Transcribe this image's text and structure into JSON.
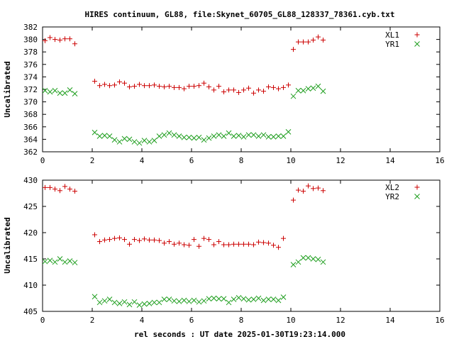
{
  "title": "HIRES continuum, GL88, file:Skynet_60705_GL88_128337_78361.cyb.txt",
  "xlabel": "rel seconds : UT date 2025-01-30T19:23:14.000",
  "colors": {
    "red": "#cc0000",
    "green": "#1a9c1a",
    "axis": "#000000"
  },
  "chart_data": [
    {
      "type": "scatter",
      "ylabel": "Uncalibrated",
      "xlim": [
        0,
        16
      ],
      "ylim": [
        362,
        382
      ],
      "xticks": [
        "0",
        "2",
        "4",
        "6",
        "8",
        "10",
        "12",
        "14",
        "16"
      ],
      "yticks": [
        "362",
        "364",
        "366",
        "368",
        "370",
        "372",
        "374",
        "376",
        "378",
        "380",
        "382"
      ],
      "series": [
        {
          "name": "XL1",
          "marker": "plus",
          "color": "#cc0000",
          "points": [
            [
              0.1,
              379.8
            ],
            [
              0.3,
              380.3
            ],
            [
              0.5,
              380.0
            ],
            [
              0.7,
              379.9
            ],
            [
              0.9,
              380.1
            ],
            [
              1.1,
              380.1
            ],
            [
              1.3,
              379.3
            ],
            [
              2.1,
              373.3
            ],
            [
              2.3,
              372.6
            ],
            [
              2.5,
              372.8
            ],
            [
              2.7,
              372.6
            ],
            [
              2.9,
              372.7
            ],
            [
              3.1,
              373.2
            ],
            [
              3.3,
              373.0
            ],
            [
              3.5,
              372.4
            ],
            [
              3.7,
              372.5
            ],
            [
              3.9,
              372.8
            ],
            [
              4.1,
              372.6
            ],
            [
              4.3,
              372.6
            ],
            [
              4.5,
              372.7
            ],
            [
              4.7,
              372.5
            ],
            [
              4.9,
              372.4
            ],
            [
              5.1,
              372.5
            ],
            [
              5.3,
              372.3
            ],
            [
              5.5,
              372.3
            ],
            [
              5.7,
              372.1
            ],
            [
              5.9,
              372.5
            ],
            [
              6.1,
              372.5
            ],
            [
              6.3,
              372.6
            ],
            [
              6.5,
              373.0
            ],
            [
              6.7,
              372.4
            ],
            [
              6.9,
              371.9
            ],
            [
              7.1,
              372.5
            ],
            [
              7.3,
              371.6
            ],
            [
              7.5,
              371.9
            ],
            [
              7.7,
              371.9
            ],
            [
              7.9,
              371.5
            ],
            [
              8.1,
              371.9
            ],
            [
              8.3,
              372.2
            ],
            [
              8.5,
              371.4
            ],
            [
              8.7,
              371.9
            ],
            [
              8.9,
              371.7
            ],
            [
              9.1,
              372.4
            ],
            [
              9.3,
              372.3
            ],
            [
              9.5,
              372.1
            ],
            [
              9.7,
              372.3
            ],
            [
              9.9,
              372.7
            ],
            [
              10.1,
              378.4
            ],
            [
              10.3,
              379.6
            ],
            [
              10.5,
              379.6
            ],
            [
              10.7,
              379.6
            ],
            [
              10.9,
              379.9
            ],
            [
              11.1,
              380.4
            ],
            [
              11.3,
              379.9
            ]
          ]
        },
        {
          "name": "YR1",
          "marker": "cross",
          "color": "#1a9c1a",
          "points": [
            [
              0.1,
              371.8
            ],
            [
              0.3,
              371.6
            ],
            [
              0.5,
              371.8
            ],
            [
              0.7,
              371.4
            ],
            [
              0.9,
              371.4
            ],
            [
              1.1,
              371.9
            ],
            [
              1.3,
              371.3
            ],
            [
              2.1,
              365.1
            ],
            [
              2.3,
              364.5
            ],
            [
              2.5,
              364.6
            ],
            [
              2.7,
              364.5
            ],
            [
              2.9,
              363.9
            ],
            [
              3.1,
              363.6
            ],
            [
              3.3,
              364.1
            ],
            [
              3.5,
              364.0
            ],
            [
              3.7,
              363.6
            ],
            [
              3.9,
              363.4
            ],
            [
              4.1,
              363.8
            ],
            [
              4.3,
              363.6
            ],
            [
              4.5,
              363.8
            ],
            [
              4.7,
              364.5
            ],
            [
              4.9,
              364.7
            ],
            [
              5.1,
              365.0
            ],
            [
              5.3,
              364.7
            ],
            [
              5.5,
              364.5
            ],
            [
              5.7,
              364.3
            ],
            [
              5.9,
              364.3
            ],
            [
              6.1,
              364.2
            ],
            [
              6.3,
              364.3
            ],
            [
              6.5,
              363.9
            ],
            [
              6.7,
              364.2
            ],
            [
              6.9,
              364.5
            ],
            [
              7.1,
              364.7
            ],
            [
              7.3,
              364.5
            ],
            [
              7.5,
              365.0
            ],
            [
              7.7,
              364.5
            ],
            [
              7.9,
              364.6
            ],
            [
              8.1,
              364.4
            ],
            [
              8.3,
              364.7
            ],
            [
              8.5,
              364.7
            ],
            [
              8.7,
              364.5
            ],
            [
              8.9,
              364.7
            ],
            [
              9.1,
              364.4
            ],
            [
              9.3,
              364.4
            ],
            [
              9.5,
              364.5
            ],
            [
              9.7,
              364.5
            ],
            [
              9.9,
              365.2
            ],
            [
              10.1,
              370.9
            ],
            [
              10.3,
              371.8
            ],
            [
              10.5,
              371.8
            ],
            [
              10.7,
              372.1
            ],
            [
              10.9,
              372.2
            ],
            [
              11.1,
              372.5
            ],
            [
              11.3,
              371.7
            ]
          ]
        }
      ]
    },
    {
      "type": "scatter",
      "ylabel": "Uncalibrated",
      "xlim": [
        0,
        16
      ],
      "ylim": [
        405,
        430
      ],
      "xticks": [
        "0",
        "2",
        "4",
        "6",
        "8",
        "10",
        "12",
        "14",
        "16"
      ],
      "yticks": [
        "405",
        "410",
        "415",
        "420",
        "425",
        "430"
      ],
      "series": [
        {
          "name": "XL2",
          "marker": "plus",
          "color": "#cc0000",
          "points": [
            [
              0.1,
              428.6
            ],
            [
              0.3,
              428.6
            ],
            [
              0.5,
              428.3
            ],
            [
              0.7,
              428.0
            ],
            [
              0.9,
              428.8
            ],
            [
              1.1,
              428.3
            ],
            [
              1.3,
              427.9
            ],
            [
              2.1,
              419.6
            ],
            [
              2.3,
              418.3
            ],
            [
              2.5,
              418.6
            ],
            [
              2.7,
              418.7
            ],
            [
              2.9,
              418.9
            ],
            [
              3.1,
              419.0
            ],
            [
              3.3,
              418.7
            ],
            [
              3.5,
              417.8
            ],
            [
              3.7,
              418.7
            ],
            [
              3.9,
              418.5
            ],
            [
              4.1,
              418.8
            ],
            [
              4.3,
              418.6
            ],
            [
              4.5,
              418.6
            ],
            [
              4.7,
              418.5
            ],
            [
              4.9,
              418.0
            ],
            [
              5.1,
              418.3
            ],
            [
              5.3,
              417.8
            ],
            [
              5.5,
              418.0
            ],
            [
              5.7,
              417.7
            ],
            [
              5.9,
              417.6
            ],
            [
              6.1,
              418.7
            ],
            [
              6.3,
              417.4
            ],
            [
              6.5,
              418.9
            ],
            [
              6.7,
              418.7
            ],
            [
              6.9,
              417.7
            ],
            [
              7.1,
              418.3
            ],
            [
              7.3,
              417.7
            ],
            [
              7.5,
              417.7
            ],
            [
              7.7,
              417.8
            ],
            [
              7.9,
              417.8
            ],
            [
              8.1,
              417.8
            ],
            [
              8.3,
              417.8
            ],
            [
              8.5,
              417.7
            ],
            [
              8.7,
              418.2
            ],
            [
              8.9,
              418.1
            ],
            [
              9.1,
              418.0
            ],
            [
              9.3,
              417.6
            ],
            [
              9.5,
              417.2
            ],
            [
              9.7,
              418.9
            ],
            [
              10.1,
              426.2
            ],
            [
              10.3,
              428.1
            ],
            [
              10.5,
              427.9
            ],
            [
              10.7,
              428.9
            ],
            [
              10.9,
              428.4
            ],
            [
              11.1,
              428.5
            ],
            [
              11.3,
              428.0
            ]
          ]
        },
        {
          "name": "YR2",
          "marker": "cross",
          "color": "#1a9c1a",
          "points": [
            [
              0.1,
              414.5
            ],
            [
              0.3,
              414.7
            ],
            [
              0.5,
              414.4
            ],
            [
              0.7,
              415.0
            ],
            [
              0.9,
              414.4
            ],
            [
              1.1,
              414.6
            ],
            [
              1.3,
              414.3
            ],
            [
              2.1,
              407.8
            ],
            [
              2.3,
              406.7
            ],
            [
              2.5,
              407.0
            ],
            [
              2.7,
              407.3
            ],
            [
              2.9,
              406.7
            ],
            [
              3.1,
              406.5
            ],
            [
              3.3,
              406.8
            ],
            [
              3.5,
              406.3
            ],
            [
              3.7,
              406.8
            ],
            [
              3.9,
              406.2
            ],
            [
              4.1,
              406.4
            ],
            [
              4.3,
              406.5
            ],
            [
              4.5,
              406.7
            ],
            [
              4.7,
              406.7
            ],
            [
              4.9,
              407.3
            ],
            [
              5.1,
              407.3
            ],
            [
              5.3,
              407.0
            ],
            [
              5.5,
              406.9
            ],
            [
              5.7,
              407.1
            ],
            [
              5.9,
              406.9
            ],
            [
              6.1,
              407.1
            ],
            [
              6.3,
              406.8
            ],
            [
              6.5,
              407.0
            ],
            [
              6.7,
              407.4
            ],
            [
              6.9,
              407.5
            ],
            [
              7.1,
              407.4
            ],
            [
              7.3,
              407.4
            ],
            [
              7.5,
              406.7
            ],
            [
              7.7,
              407.3
            ],
            [
              7.9,
              407.6
            ],
            [
              8.1,
              407.4
            ],
            [
              8.3,
              407.2
            ],
            [
              8.5,
              407.3
            ],
            [
              8.7,
              407.5
            ],
            [
              8.9,
              407.1
            ],
            [
              9.1,
              407.3
            ],
            [
              9.3,
              407.3
            ],
            [
              9.5,
              407.1
            ],
            [
              9.7,
              407.7
            ],
            [
              10.1,
              413.9
            ],
            [
              10.3,
              414.4
            ],
            [
              10.5,
              415.2
            ],
            [
              10.7,
              415.2
            ],
            [
              10.9,
              415.0
            ],
            [
              11.1,
              414.9
            ],
            [
              11.3,
              414.4
            ]
          ]
        }
      ]
    }
  ]
}
